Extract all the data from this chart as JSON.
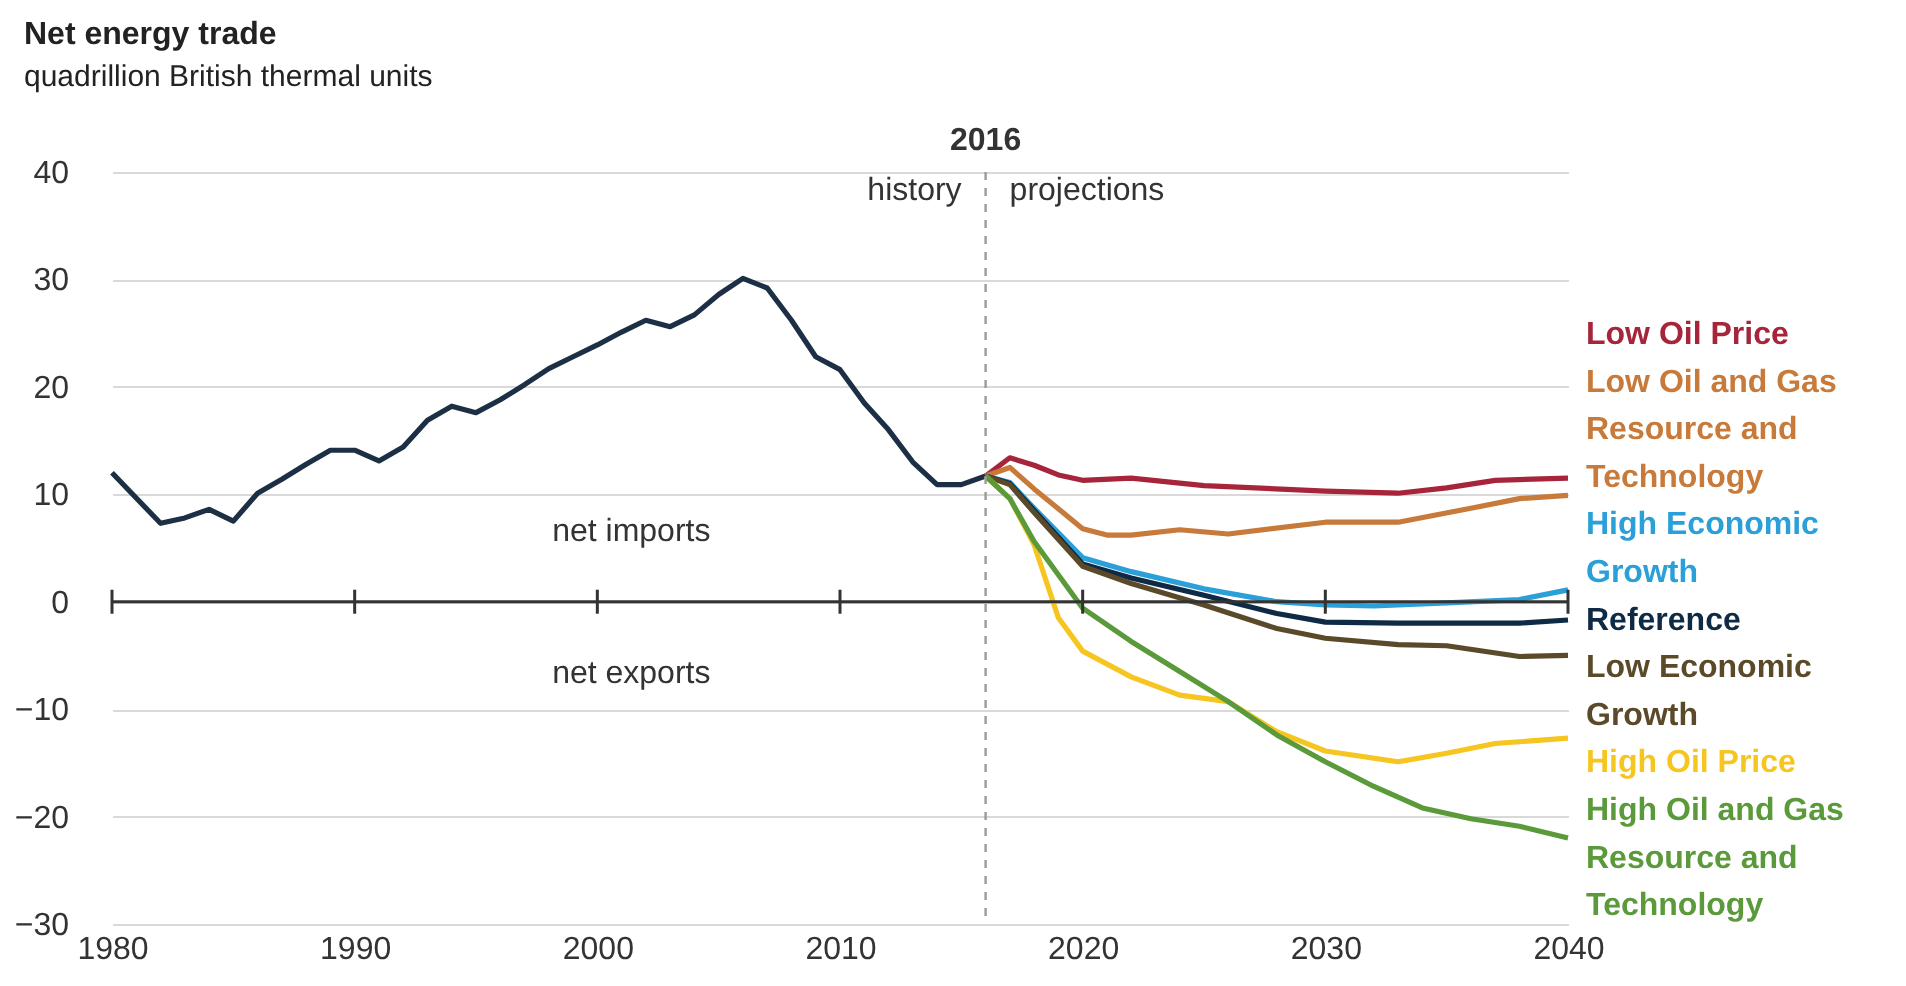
{
  "chart_data": {
    "type": "line",
    "title": "Net energy trade",
    "subtitle": "quadrillion British thermal units",
    "xlim": [
      1980,
      2040
    ],
    "xticks": [
      1980,
      1990,
      2000,
      2010,
      2020,
      2030,
      2040
    ],
    "ylim": [
      -30,
      40
    ],
    "yticks": [
      -30,
      -20,
      -10,
      0,
      10,
      20,
      30,
      40
    ],
    "grid": "y",
    "legend": false,
    "ref_lines": [
      {
        "axis": "x",
        "value": 2016,
        "label": "2016",
        "color": "#9a9a9a",
        "line_style": "dashed"
      }
    ],
    "annotations": [
      "history",
      "projections",
      "net imports",
      "net exports"
    ],
    "series": [
      {
        "color": "#1c2f44",
        "x": [
          1980,
          1982,
          1983,
          1984,
          1985,
          1986,
          1987,
          1988,
          1989,
          1990,
          1991,
          1992,
          1993,
          1994,
          1995,
          1996,
          1997,
          1998,
          1999,
          2000,
          2001,
          2002,
          2003,
          2004,
          2005,
          2006,
          2007,
          2008,
          2009,
          2010,
          2011,
          2012,
          2013,
          2014,
          2015,
          2016
        ],
        "values": [
          12.0,
          7.3,
          7.8,
          8.6,
          7.5,
          10.1,
          11.4,
          12.8,
          14.1,
          14.1,
          13.1,
          14.4,
          16.9,
          18.2,
          17.6,
          18.8,
          20.2,
          21.7,
          22.8,
          23.9,
          25.1,
          26.2,
          25.6,
          26.7,
          28.6,
          30.1,
          29.2,
          26.2,
          22.8,
          21.6,
          18.5,
          16.0,
          13.0,
          10.9,
          10.9,
          11.7
        ]
      },
      {
        "name": "Low Oil Price",
        "color": "#a6253b",
        "x": [
          2016,
          2017,
          2018,
          2019,
          2020,
          2022,
          2025,
          2030,
          2033,
          2035,
          2037,
          2040
        ],
        "values": [
          11.7,
          13.4,
          12.7,
          11.8,
          11.3,
          11.5,
          10.8,
          10.3,
          10.1,
          10.6,
          11.3,
          11.5
        ]
      },
      {
        "name": "Low Oil and Gas Resource and Technology",
        "color": "#c87a3a",
        "x": [
          2016,
          2017,
          2018,
          2020,
          2021,
          2022,
          2024,
          2026,
          2030,
          2033,
          2036,
          2038,
          2040
        ],
        "values": [
          11.7,
          12.5,
          10.5,
          6.8,
          6.2,
          6.2,
          6.7,
          6.3,
          7.4,
          7.4,
          8.7,
          9.6,
          9.9
        ]
      },
      {
        "name": "High Economic Growth",
        "color": "#2a9fd8",
        "x": [
          2016,
          2017,
          2018,
          2020,
          2022,
          2025,
          2028,
          2030,
          2032,
          2035,
          2038,
          2040
        ],
        "values": [
          11.7,
          11.1,
          8.7,
          4.1,
          2.8,
          1.2,
          0,
          -0.3,
          -0.4,
          -0.1,
          0.2,
          1.1
        ]
      },
      {
        "name": "Reference",
        "color": "#0f2a45",
        "x": [
          2016,
          2017,
          2018,
          2020,
          2022,
          2025,
          2028,
          2030,
          2033,
          2036,
          2038,
          2040
        ],
        "values": [
          11.7,
          11.0,
          8.5,
          3.5,
          2.2,
          0.6,
          -1.1,
          -1.9,
          -2.0,
          -2.0,
          -2.0,
          -1.7
        ]
      },
      {
        "name": "Low Economic Growth",
        "color": "#5a4a2a",
        "x": [
          2016,
          2017,
          2018,
          2020,
          2022,
          2025,
          2028,
          2030,
          2033,
          2035,
          2038,
          2040
        ],
        "values": [
          11.7,
          10.9,
          8.3,
          3.3,
          1.7,
          -0.3,
          -2.5,
          -3.4,
          -4.0,
          -4.1,
          -5.1,
          -5.0
        ]
      },
      {
        "name": "High Oil Price",
        "color": "#f7c520",
        "x": [
          2016,
          2017,
          2018,
          2019,
          2020,
          2022,
          2024,
          2026,
          2028,
          2030,
          2033,
          2035,
          2037,
          2040
        ],
        "values": [
          11.7,
          9.6,
          5.3,
          -1.5,
          -4.6,
          -7.0,
          -8.7,
          -9.3,
          -12.1,
          -13.9,
          -14.9,
          -14.1,
          -13.2,
          -12.7
        ]
      },
      {
        "name": "High Oil and Gas Resource and Technology",
        "color": "#5a9a3a",
        "x": [
          2016,
          2017,
          2018,
          2020,
          2022,
          2024,
          2026,
          2028,
          2030,
          2032,
          2034,
          2036,
          2038,
          2040
        ],
        "values": [
          11.7,
          9.6,
          5.6,
          -0.6,
          -3.7,
          -6.5,
          -9.3,
          -12.4,
          -14.9,
          -17.2,
          -19.2,
          -20.2,
          -20.9,
          -22.0
        ]
      }
    ]
  }
}
